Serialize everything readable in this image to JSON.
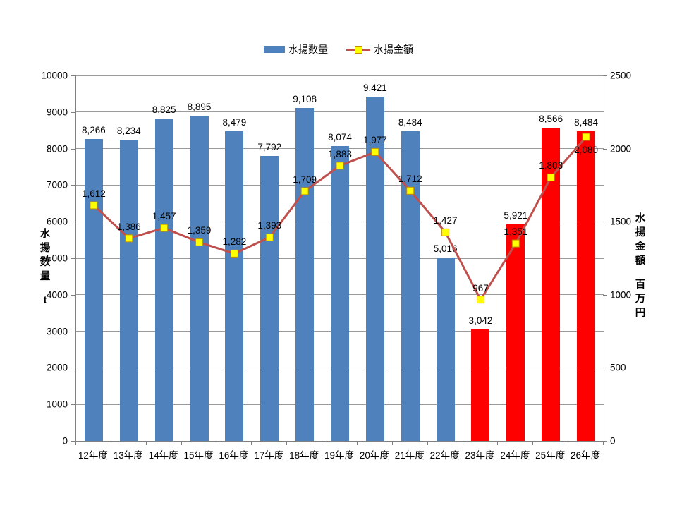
{
  "legend": {
    "series1": "水揚数量",
    "series2": "水揚金額"
  },
  "chart_data": {
    "type": "bar+line",
    "categories": [
      "12年度",
      "13年度",
      "14年度",
      "15年度",
      "16年度",
      "17年度",
      "18年度",
      "19年度",
      "20年度",
      "21年度",
      "22年度",
      "23年度",
      "24年度",
      "25年度",
      "26年度"
    ],
    "series": [
      {
        "name": "水揚数量",
        "type": "bar",
        "axis": "left",
        "values": [
          8266,
          8234,
          8825,
          8895,
          8479,
          7792,
          9108,
          8074,
          9421,
          8484,
          5016,
          3042,
          5921,
          8566,
          8484
        ],
        "bar_colors": [
          "#4F81BD",
          "#4F81BD",
          "#4F81BD",
          "#4F81BD",
          "#4F81BD",
          "#4F81BD",
          "#4F81BD",
          "#4F81BD",
          "#4F81BD",
          "#4F81BD",
          "#4F81BD",
          "#FF0000",
          "#FF0000",
          "#FF0000",
          "#FF0000"
        ]
      },
      {
        "name": "水揚金額",
        "type": "line",
        "axis": "right",
        "values": [
          1612,
          1386,
          1457,
          1359,
          1282,
          1393,
          1709,
          1883,
          1977,
          1712,
          1427,
          967,
          1351,
          1803,
          2080
        ],
        "line_color": "#C0504D",
        "marker_fill": "#FFFF00",
        "marker_border": "#BF9000"
      }
    ],
    "left_axis": {
      "title": "水揚数量",
      "unit": "t",
      "min": 0,
      "max": 10000,
      "step": 1000
    },
    "right_axis": {
      "title": "水揚金額",
      "unit": "百万円",
      "min": 0,
      "max": 2500,
      "step": 500
    },
    "grid": true,
    "legend_position": "top",
    "colors": {
      "bar_main": "#4F81BD",
      "bar_highlight": "#FF0000",
      "line": "#C0504D",
      "marker": "#FFFF00",
      "gridline": "#9a9a9a",
      "axis": "#808080"
    }
  }
}
